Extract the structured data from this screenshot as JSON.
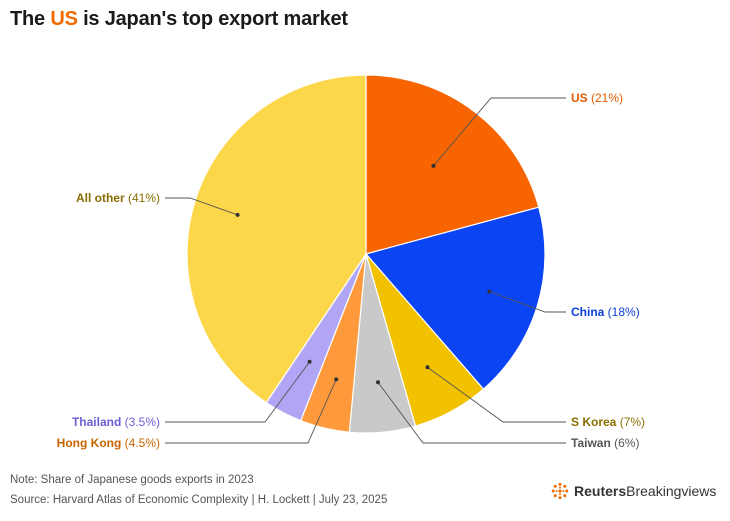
{
  "title": {
    "prefix": "The ",
    "highlight": "US",
    "suffix": " is Japan's top export market"
  },
  "chart_data": {
    "type": "pie",
    "title": "The US is Japan's top export market",
    "slices": [
      {
        "name": "US",
        "value": 21,
        "pct_label": "(21%)",
        "color": "#f76400"
      },
      {
        "name": "China",
        "value": 18,
        "pct_label": "(18%)",
        "color": "#0b44f3"
      },
      {
        "name": "S Korea",
        "value": 7,
        "pct_label": "(7%)",
        "color": "#f2c100"
      },
      {
        "name": "Taiwan",
        "value": 6,
        "pct_label": "(6%)",
        "color": "#c9c9c9"
      },
      {
        "name": "Hong Kong",
        "value": 4.5,
        "pct_label": "(4.5%)",
        "color": "#ff9a3c"
      },
      {
        "name": "Thailand",
        "value": 3.5,
        "pct_label": "(3.5%)",
        "color": "#b1a6f5"
      },
      {
        "name": "All other",
        "value": 41,
        "pct_label": "(41%)",
        "color": "#fdd74a"
      }
    ],
    "label_colors": {
      "US": "#e25b00",
      "China": "#0b3fd8",
      "S Korea": "#8a6d00",
      "Taiwan": "#555555",
      "Hong Kong": "#c76400",
      "Thailand": "#6b5fd6",
      "All other": "#8a6d00"
    }
  },
  "footer": {
    "note": "Note: Share of Japanese goods exports in 2023",
    "source": "Source: Harvard Atlas of Economic Complexity | H. Lockett | July 23, 2025",
    "brand_bold": "Reuters",
    "brand_regular": "Breakingviews"
  }
}
